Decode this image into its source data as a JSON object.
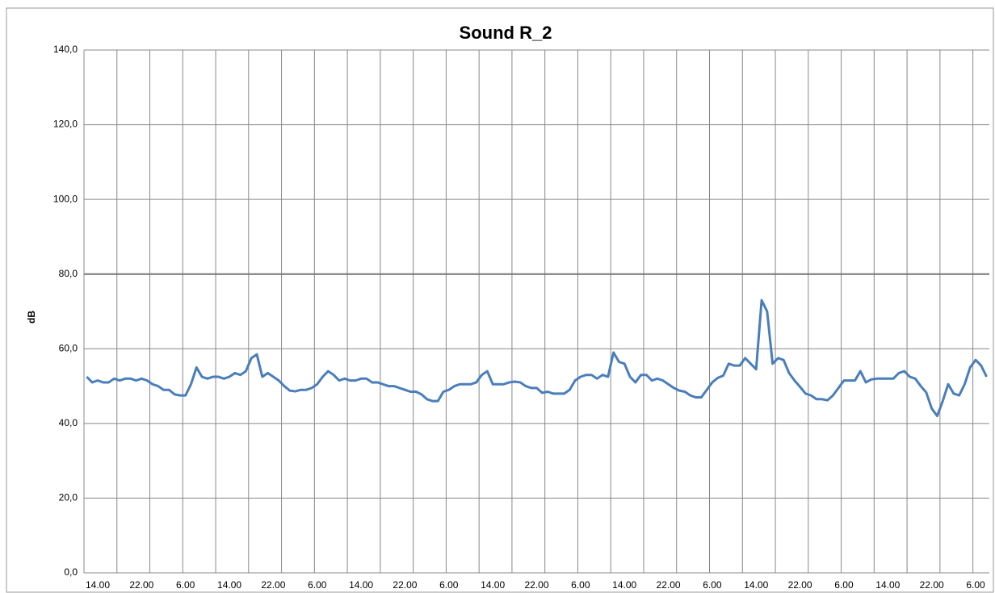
{
  "chart_data": {
    "type": "line",
    "title": "Sound R_2",
    "y_label": "dB",
    "categories": [
      null,
      null,
      "14.00",
      null,
      null,
      null,
      null,
      null,
      null,
      null,
      "22.00",
      null,
      null,
      null,
      null,
      null,
      null,
      null,
      "6.00",
      null,
      null,
      null,
      null,
      null,
      null,
      null,
      "14.00",
      null,
      null,
      null,
      null,
      null,
      null,
      null,
      "22.00",
      null,
      null,
      null,
      null,
      null,
      null,
      null,
      "6.00",
      null,
      null,
      null,
      null,
      null,
      null,
      null,
      "14.00",
      null,
      null,
      null,
      null,
      null,
      null,
      null,
      "22.00",
      null,
      null,
      null,
      null,
      null,
      null,
      null,
      "6.00",
      null,
      null,
      null,
      null,
      null,
      null,
      null,
      "14.00",
      null,
      null,
      null,
      null,
      null,
      null,
      null,
      "22.00",
      null,
      null,
      null,
      null,
      null,
      null,
      null,
      "6.00",
      null,
      null,
      null,
      null,
      null,
      null,
      null,
      "14.00",
      null,
      null,
      null,
      null,
      null,
      null,
      null,
      "22.00",
      null,
      null,
      null,
      null,
      null,
      null,
      null,
      "6.00",
      null,
      null,
      null,
      null,
      null,
      null,
      null,
      "14.00",
      null,
      null,
      null,
      null,
      null,
      null,
      null,
      "22.00",
      null,
      null,
      null,
      null,
      null,
      null,
      null,
      "6.00",
      null,
      null,
      null,
      null,
      null,
      null,
      null,
      "14.00",
      null,
      null,
      null,
      null,
      null,
      null,
      null,
      "22.00",
      null,
      null,
      null,
      null,
      null,
      null,
      null,
      "6.00",
      null,
      null
    ],
    "series": [
      {
        "color": "#4a7ebb",
        "values": [
          52.5,
          51,
          51.5,
          51,
          51,
          52,
          51.5,
          52,
          52,
          51.5,
          52,
          51.5,
          50.5,
          50,
          49,
          49,
          47.8,
          47.5,
          47.5,
          50.5,
          55,
          52.5,
          52,
          52.5,
          52.5,
          52,
          52.5,
          53.5,
          53,
          54,
          57.5,
          58.5,
          52.5,
          53.5,
          52.5,
          51.5,
          50,
          48.8,
          48.6,
          49,
          49,
          49.5,
          50.5,
          52.5,
          54,
          53,
          51.5,
          52,
          51.5,
          51.5,
          52,
          52,
          51,
          51,
          50.5,
          50,
          50,
          49.5,
          49,
          48.5,
          48.5,
          47.8,
          46.5,
          46,
          46,
          48.5,
          49,
          50,
          50.5,
          50.5,
          50.5,
          51,
          53,
          54,
          50.5,
          50.5,
          50.5,
          51,
          51.2,
          51,
          50,
          49.5,
          49.5,
          48.2,
          48.5,
          48,
          48,
          48,
          49,
          51.5,
          52.5,
          53,
          53,
          52,
          53,
          52.5,
          59,
          56.5,
          56,
          52.5,
          51,
          53,
          53,
          51.5,
          52,
          51.5,
          50.5,
          49.5,
          48.8,
          48.5,
          47.5,
          47,
          47,
          49,
          51,
          52.2,
          52.8,
          56,
          55.5,
          55.5,
          57.5,
          56,
          54.5,
          73,
          70,
          56,
          57.5,
          57,
          53.5,
          51.5,
          49.8,
          48,
          47.5,
          46.5,
          46.5,
          46.2,
          47.5,
          49.5,
          51.5,
          51.5,
          51.5,
          54,
          51,
          51.8,
          52,
          52,
          52,
          52,
          53.5,
          54,
          52.5,
          52,
          50,
          48.3,
          44,
          42,
          46,
          50.5,
          48,
          47.5,
          50.5,
          55,
          57,
          55.5,
          52.5
        ]
      }
    ],
    "reference_line": 80,
    "ylim": [
      0,
      140
    ],
    "yticks": [
      {
        "value": 0,
        "label": "0,0"
      },
      {
        "value": 20,
        "label": "20,0"
      },
      {
        "value": 40,
        "label": "40,0"
      },
      {
        "value": 60,
        "label": "60,0"
      },
      {
        "value": 80,
        "label": "80,0"
      },
      {
        "value": 100,
        "label": "100,0"
      },
      {
        "value": 120,
        "label": "120,0"
      },
      {
        "value": 140,
        "label": "140,0"
      }
    ],
    "grid": true
  }
}
